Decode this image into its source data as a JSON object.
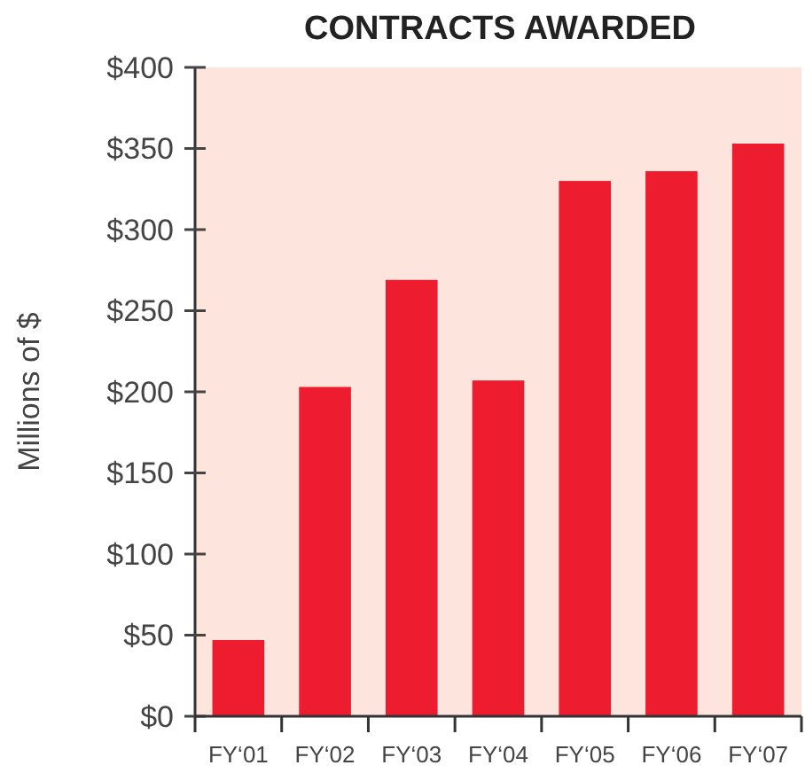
{
  "chart_data": {
    "type": "bar",
    "title": "CONTRACTS AWARDED",
    "ylabel": "Millions of $",
    "categories": [
      "FY‘01",
      "FY‘02",
      "FY‘03",
      "FY‘04",
      "FY‘05",
      "FY‘06",
      "FY‘07"
    ],
    "values": [
      47,
      203,
      269,
      207,
      330,
      336,
      353
    ],
    "color": "#ed1c2e",
    "ylim": [
      0,
      400
    ],
    "yticks": [
      {
        "value": 0,
        "label": "$0"
      },
      {
        "value": 50,
        "label": "$50"
      },
      {
        "value": 100,
        "label": "$100"
      },
      {
        "value": 150,
        "label": "$150"
      },
      {
        "value": 200,
        "label": "$200"
      },
      {
        "value": 250,
        "label": "$250"
      },
      {
        "value": 300,
        "label": "$300"
      },
      {
        "value": 350,
        "label": "$350"
      },
      {
        "value": 400,
        "label": "$400"
      }
    ],
    "grid": false
  }
}
